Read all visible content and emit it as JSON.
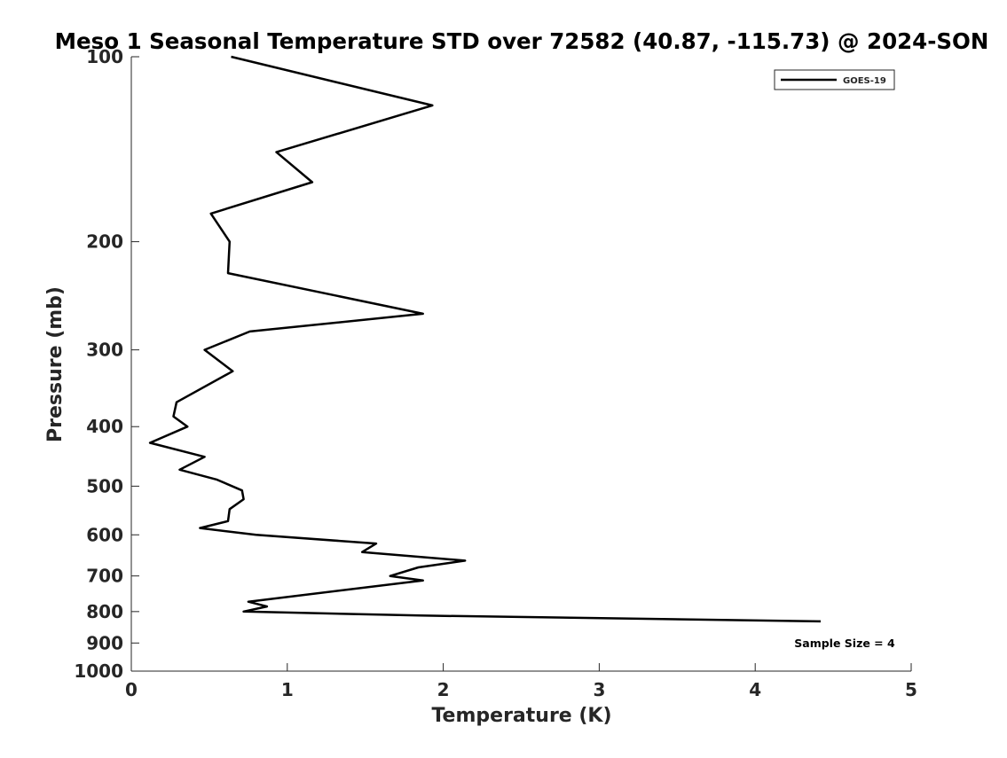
{
  "chart_data": {
    "type": "line",
    "title": "Meso 1 Seasonal Temperature STD over 72582 (40.87, -115.73) @ 2024-SON",
    "xlabel": "Temperature (K)",
    "ylabel": "Pressure (mb)",
    "xlim": [
      0,
      5
    ],
    "ylim": [
      1000,
      100
    ],
    "y_scale": "log",
    "y_reversed": true,
    "grid": false,
    "legend_position": "top-right",
    "x_ticks": [
      "0",
      "1",
      "2",
      "3",
      "4",
      "5"
    ],
    "y_ticks": [
      "100",
      "200",
      "300",
      "400",
      "500",
      "600",
      "700",
      "800",
      "900",
      "1000"
    ],
    "annotation": "Sample Size = 4",
    "series": [
      {
        "name": "GOES-19",
        "color": "#000000",
        "points": [
          {
            "x": 0.64,
            "y": 100
          },
          {
            "x": 1.93,
            "y": 120
          },
          {
            "x": 0.93,
            "y": 143
          },
          {
            "x": 1.16,
            "y": 160
          },
          {
            "x": 0.51,
            "y": 180
          },
          {
            "x": 0.63,
            "y": 200
          },
          {
            "x": 0.62,
            "y": 225
          },
          {
            "x": 1.87,
            "y": 262
          },
          {
            "x": 0.76,
            "y": 280
          },
          {
            "x": 0.47,
            "y": 300
          },
          {
            "x": 0.65,
            "y": 325
          },
          {
            "x": 0.29,
            "y": 365
          },
          {
            "x": 0.27,
            "y": 385
          },
          {
            "x": 0.36,
            "y": 400
          },
          {
            "x": 0.12,
            "y": 425
          },
          {
            "x": 0.47,
            "y": 448
          },
          {
            "x": 0.31,
            "y": 470
          },
          {
            "x": 0.55,
            "y": 488
          },
          {
            "x": 0.71,
            "y": 508
          },
          {
            "x": 0.72,
            "y": 525
          },
          {
            "x": 0.63,
            "y": 545
          },
          {
            "x": 0.62,
            "y": 570
          },
          {
            "x": 0.44,
            "y": 585
          },
          {
            "x": 0.8,
            "y": 600
          },
          {
            "x": 1.57,
            "y": 620
          },
          {
            "x": 1.48,
            "y": 640
          },
          {
            "x": 2.14,
            "y": 661
          },
          {
            "x": 1.84,
            "y": 678
          },
          {
            "x": 1.66,
            "y": 700
          },
          {
            "x": 1.87,
            "y": 712
          },
          {
            "x": 0.75,
            "y": 771
          },
          {
            "x": 0.87,
            "y": 785
          },
          {
            "x": 0.72,
            "y": 800
          },
          {
            "x": 1.85,
            "y": 812
          },
          {
            "x": 4.42,
            "y": 830
          }
        ]
      }
    ]
  }
}
